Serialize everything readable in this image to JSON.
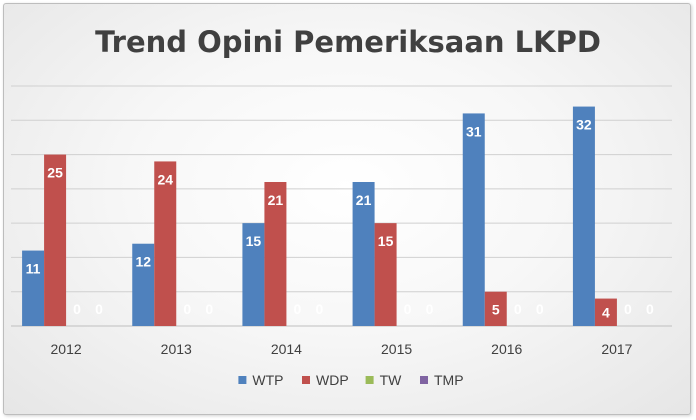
{
  "chart_data": {
    "type": "bar",
    "title": "Trend Opini Pemeriksaan LKPD",
    "xlabel": "",
    "ylabel": "",
    "categories": [
      "2012",
      "2013",
      "2014",
      "2015",
      "2016",
      "2017"
    ],
    "series": [
      {
        "name": "WTP",
        "color": "#4f81bd",
        "values": [
          11,
          12,
          15,
          21,
          31,
          32
        ]
      },
      {
        "name": "WDP",
        "color": "#c0504d",
        "values": [
          25,
          24,
          21,
          15,
          5,
          4
        ]
      },
      {
        "name": "TW",
        "color": "#9bbb59",
        "values": [
          0,
          0,
          0,
          0,
          0,
          0
        ]
      },
      {
        "name": "TMP",
        "color": "#8064a2",
        "values": [
          0,
          0,
          0,
          0,
          0,
          0
        ]
      }
    ],
    "ylim": [
      0,
      35
    ],
    "gridlines": true,
    "y_axis_labels_shown": false,
    "data_labels": true,
    "legend_position": "bottom"
  }
}
